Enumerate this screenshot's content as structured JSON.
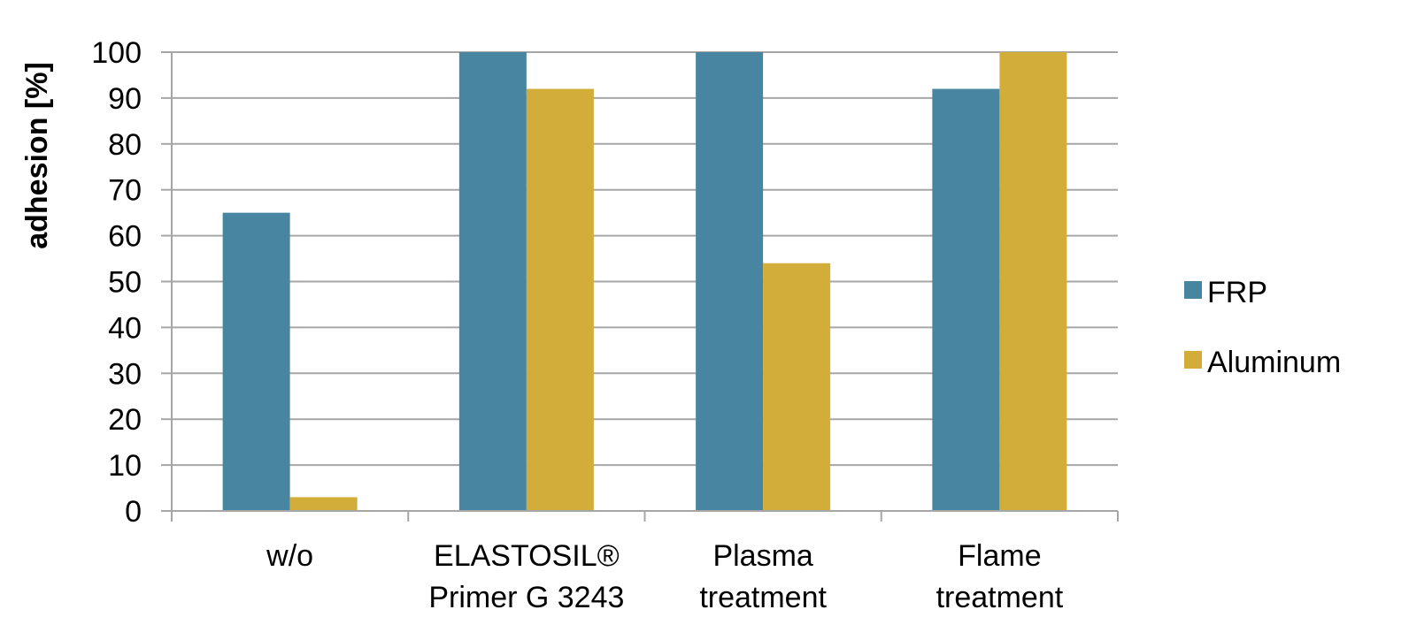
{
  "chart_data": {
    "type": "bar",
    "title": "",
    "xlabel": "",
    "ylabel": "adhesion [%]",
    "ylim": [
      0,
      100
    ],
    "yticks": [
      0,
      10,
      20,
      30,
      40,
      50,
      60,
      70,
      80,
      90,
      100
    ],
    "grid": true,
    "legend_position": "right",
    "categories": [
      [
        "w/o"
      ],
      [
        "ELASTOSIL®",
        "Primer G 3243"
      ],
      [
        "Plasma",
        "treatment"
      ],
      [
        "Flame",
        "treatment"
      ]
    ],
    "series": [
      {
        "name": "FRP",
        "color": "#4785A0",
        "values": [
          65,
          100,
          100,
          92
        ]
      },
      {
        "name": "Aluminum",
        "color": "#D2AD3A",
        "values": [
          3,
          92,
          54,
          100
        ]
      }
    ]
  }
}
